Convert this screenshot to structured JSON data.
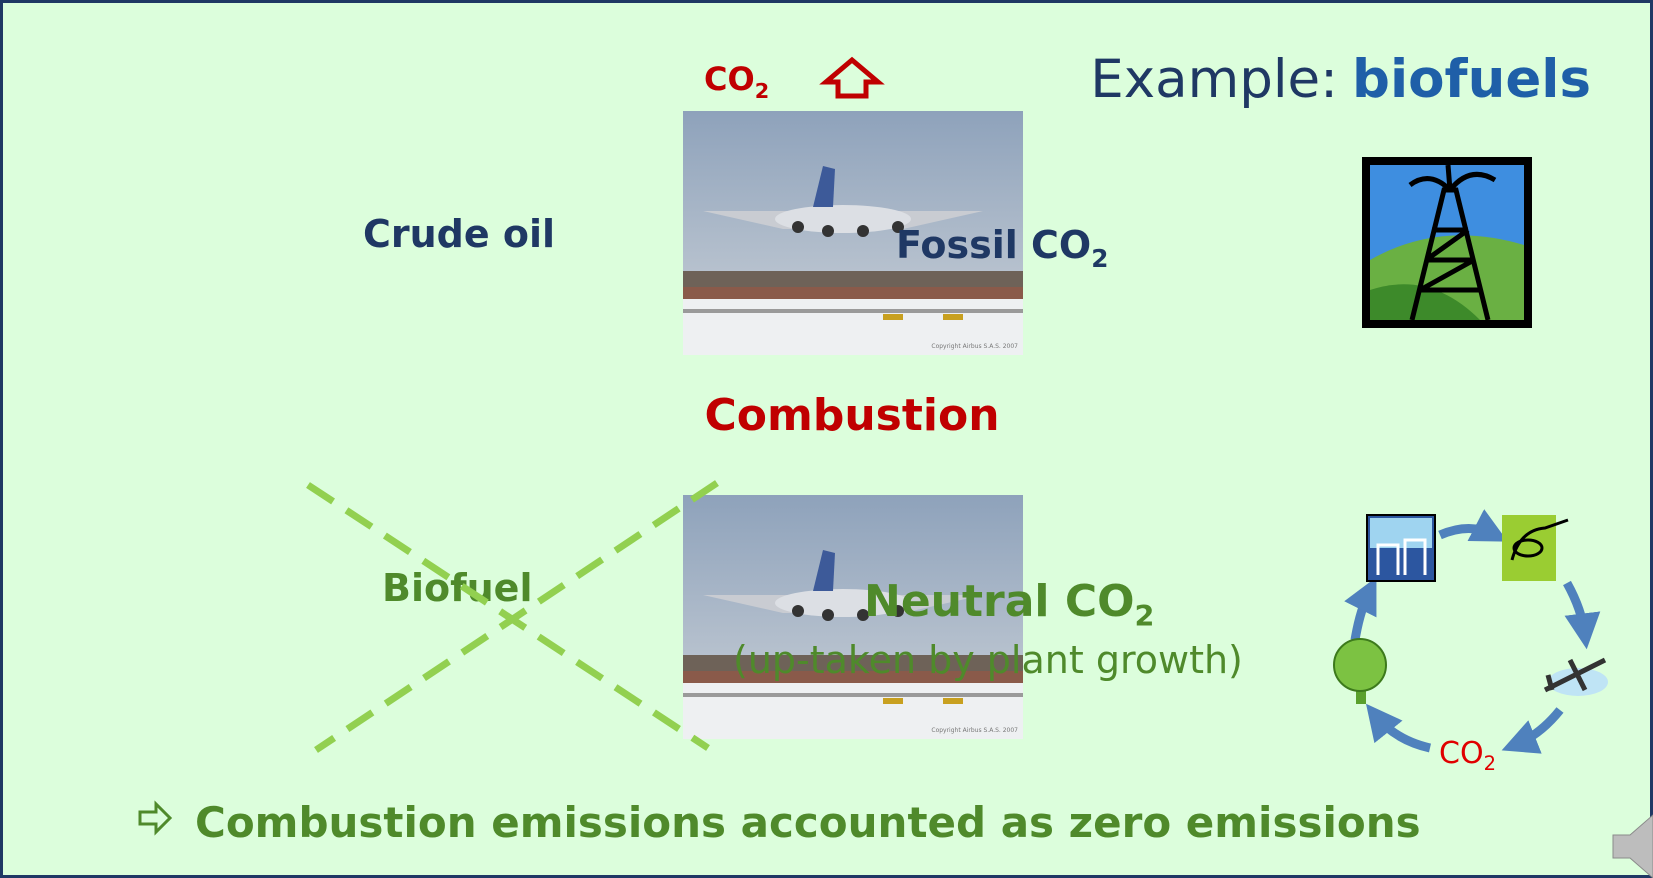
{
  "title": {
    "prefix": "Example:",
    "emphasis": "biofuels"
  },
  "top_emission": {
    "formula": "CO",
    "subscript": "2"
  },
  "fossil": {
    "source": "Crude oil",
    "result": {
      "formula": "Fossil CO",
      "subscript": "2"
    }
  },
  "process": "Combustion",
  "bio": {
    "source": "Biofuel",
    "result": {
      "formula": "Neutral CO",
      "subscript": "2"
    },
    "note": "(up-taken by plant growth)"
  },
  "cycle": {
    "formula": "CO",
    "subscript": "2"
  },
  "photo_credit": "Copyright Airbus S.A.S. 2007",
  "conclusion": "Combustion emissions accounted as zero emissions"
}
